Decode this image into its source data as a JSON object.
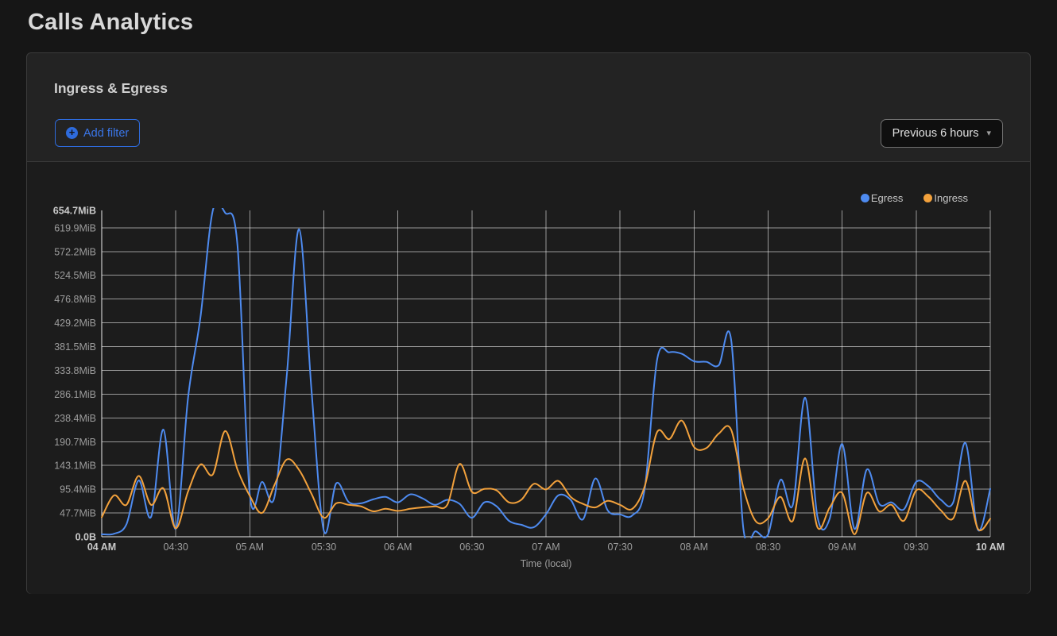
{
  "header": {
    "title": "Calls Analytics"
  },
  "panel": {
    "title": "Ingress & Egress",
    "add_filter": {
      "label": "Add filter",
      "icon": "plus-circle",
      "icon_glyph": "+"
    },
    "time_range": {
      "label": "Previous 6 hours",
      "icon": "caret-down",
      "caret_glyph": "▾"
    }
  },
  "colors": {
    "page_bg": "#161616",
    "panel_bg": "#232323",
    "chart_bg": "#1c1c1c",
    "egress_blue": "#4e8bf0",
    "ingress_orange": "#f2a13c",
    "accent_blue": "#2e6bdc"
  },
  "chart_data": {
    "type": "line",
    "unit": "MiB",
    "xlabel": "Time (local)",
    "ylabel": "",
    "ylim": [
      0,
      654.7
    ],
    "grid": true,
    "legend_position": "top-right",
    "x_start": "04:00",
    "x_end": "10:00",
    "x_step_minutes": 5,
    "x_ticks": [
      {
        "label": "04 AM",
        "index": 0,
        "bold": true
      },
      {
        "label": "04:30",
        "index": 6
      },
      {
        "label": "05 AM",
        "index": 12
      },
      {
        "label": "05:30",
        "index": 18
      },
      {
        "label": "06 AM",
        "index": 24
      },
      {
        "label": "06:30",
        "index": 30
      },
      {
        "label": "07 AM",
        "index": 36
      },
      {
        "label": "07:30",
        "index": 42
      },
      {
        "label": "08 AM",
        "index": 48
      },
      {
        "label": "08:30",
        "index": 54
      },
      {
        "label": "09 AM",
        "index": 60
      },
      {
        "label": "09:30",
        "index": 66
      },
      {
        "label": "10 AM",
        "index": 72,
        "bold": true
      }
    ],
    "y_ticks": [
      {
        "label": "654.7MiB",
        "value": 654.7,
        "bold": true,
        "gridline": false
      },
      {
        "label": "619.9MiB",
        "value": 619.9
      },
      {
        "label": "572.2MiB",
        "value": 572.2
      },
      {
        "label": "524.5MiB",
        "value": 524.5
      },
      {
        "label": "476.8MiB",
        "value": 476.8
      },
      {
        "label": "429.2MiB",
        "value": 429.2
      },
      {
        "label": "381.5MiB",
        "value": 381.5
      },
      {
        "label": "333.8MiB",
        "value": 333.8
      },
      {
        "label": "286.1MiB",
        "value": 286.1
      },
      {
        "label": "238.4MiB",
        "value": 238.4
      },
      {
        "label": "190.7MiB",
        "value": 190.7
      },
      {
        "label": "143.1MiB",
        "value": 143.1
      },
      {
        "label": "95.4MiB",
        "value": 95.4
      },
      {
        "label": "47.7MiB",
        "value": 47.7
      },
      {
        "label": "0.0B",
        "value": 0,
        "bold": true
      }
    ],
    "times": [
      "04:00",
      "04:05",
      "04:10",
      "04:15",
      "04:20",
      "04:25",
      "04:30",
      "04:35",
      "04:40",
      "04:45",
      "04:50",
      "04:55",
      "05:00",
      "05:05",
      "05:10",
      "05:15",
      "05:20",
      "05:25",
      "05:30",
      "05:35",
      "05:40",
      "05:45",
      "05:50",
      "05:55",
      "06:00",
      "06:05",
      "06:10",
      "06:15",
      "06:20",
      "06:25",
      "06:30",
      "06:35",
      "06:40",
      "06:45",
      "06:50",
      "06:55",
      "07:00",
      "07:05",
      "07:10",
      "07:15",
      "07:20",
      "07:25",
      "07:30",
      "07:35",
      "07:40",
      "07:45",
      "07:50",
      "07:55",
      "08:00",
      "08:05",
      "08:10",
      "08:15",
      "08:20",
      "08:25",
      "08:30",
      "08:35",
      "08:40",
      "08:45",
      "08:50",
      "08:55",
      "09:00",
      "09:05",
      "09:10",
      "09:15",
      "09:20",
      "09:25",
      "09:30",
      "09:35",
      "09:40",
      "09:45",
      "09:50",
      "09:55",
      "10:00"
    ],
    "series": [
      {
        "name": "Egress",
        "color": "#4e8bf0",
        "values": [
          5,
          6,
          25,
          113,
          40,
          215,
          16,
          280,
          440,
          654.7,
          650,
          585,
          85,
          110,
          80,
          325,
          617,
          293,
          12,
          107,
          70,
          67,
          75,
          80,
          69,
          85,
          77,
          64,
          74,
          66,
          38,
          69,
          61,
          32,
          24,
          19,
          45,
          83,
          74,
          35,
          117,
          53,
          45,
          43,
          96,
          355,
          370,
          367,
          352,
          351,
          344,
          396,
          16,
          11,
          5,
          114,
          64,
          279,
          40,
          37,
          186,
          16,
          135,
          66,
          69,
          55,
          110,
          101,
          74,
          69,
          188,
          14,
          96
        ]
      },
      {
        "name": "Ingress",
        "color": "#f2a13c",
        "values": [
          39,
          83,
          64,
          122,
          64,
          97,
          17,
          91,
          145,
          125,
          212,
          135,
          82,
          48,
          104,
          155,
          134,
          86,
          38,
          67,
          64,
          61,
          51,
          56,
          52,
          56,
          59,
          61,
          64,
          146,
          90,
          96,
          93,
          69,
          74,
          106,
          95,
          112,
          80,
          66,
          59,
          72,
          64,
          56,
          101,
          210,
          196,
          233,
          180,
          178,
          207,
          215,
          98,
          31,
          37,
          80,
          32,
          157,
          19,
          59,
          88,
          5,
          88,
          51,
          64,
          32,
          93,
          80,
          53,
          37,
          112,
          16,
          36
        ]
      }
    ]
  }
}
